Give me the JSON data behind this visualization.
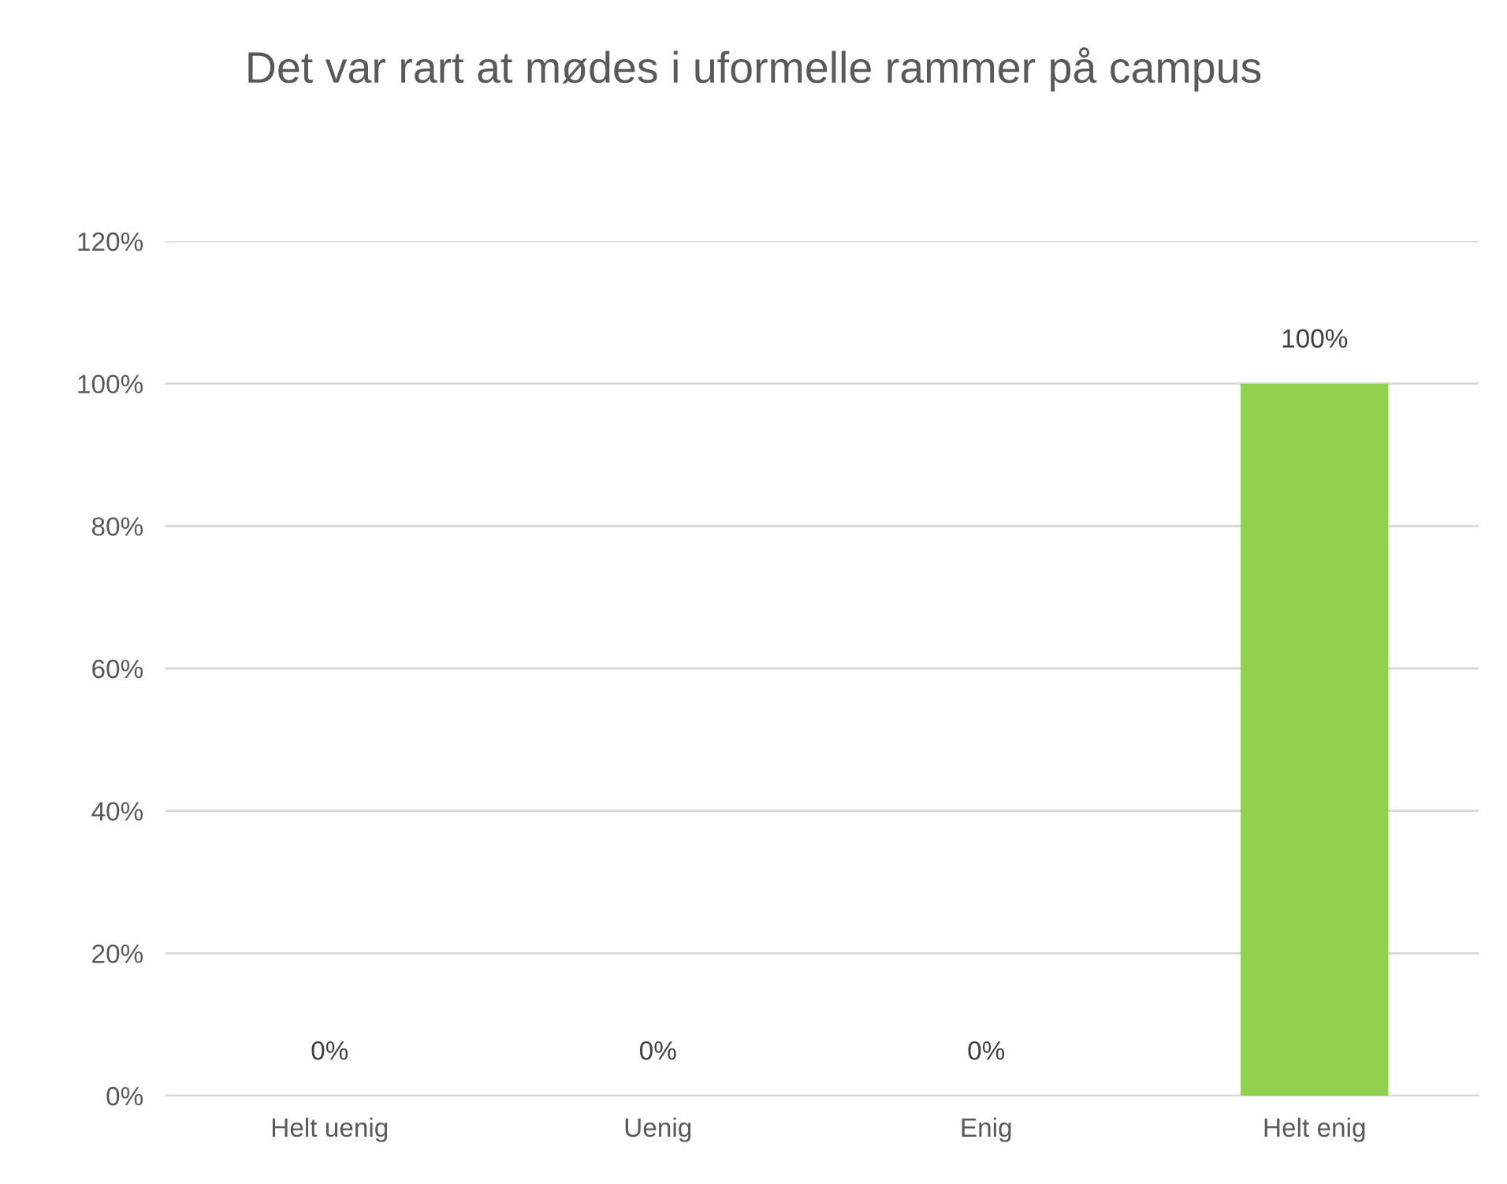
{
  "chart_data": {
    "type": "bar",
    "title": "Det var rart at mødes i uformelle rammer på campus",
    "categories": [
      "Helt uenig",
      "Uenig",
      "Enig",
      "Helt enig"
    ],
    "values": [
      0,
      0,
      0,
      100
    ],
    "color": "#92d050",
    "value_labels": [
      "0%",
      "0%",
      "0%",
      "100%"
    ],
    "ylim": [
      0,
      120
    ],
    "yticks": [
      {
        "value": 0,
        "label": "0%"
      },
      {
        "value": 20,
        "label": "20%"
      },
      {
        "value": 40,
        "label": "40%"
      },
      {
        "value": 60,
        "label": "60%"
      },
      {
        "value": 80,
        "label": "80%"
      },
      {
        "value": 100,
        "label": "100%"
      },
      {
        "value": 120,
        "label": "120%"
      }
    ],
    "grid": "y",
    "legend": false
  }
}
